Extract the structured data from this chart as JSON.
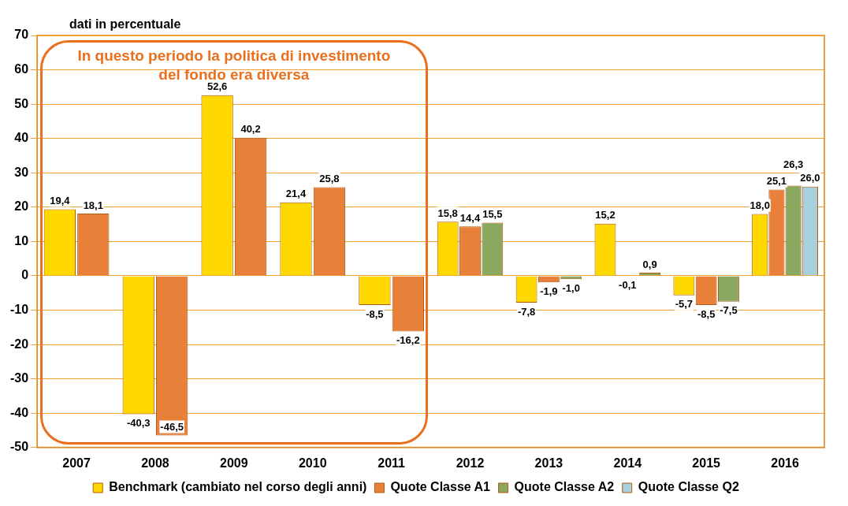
{
  "chart_data": {
    "type": "bar",
    "ylabel": "dati in percentuale",
    "categories": [
      "2007",
      "2008",
      "2009",
      "2010",
      "2011",
      "2012",
      "2013",
      "2014",
      "2015",
      "2016"
    ],
    "series": [
      {
        "name": "Benchmark (cambiato nel corso degli anni)",
        "color": "#ffd800",
        "values": [
          19.4,
          -40.3,
          52.6,
          21.4,
          -8.5,
          15.8,
          -7.8,
          15.2,
          -5.7,
          18.0
        ],
        "value_labels": [
          "19,4",
          "-40,3",
          "52,6",
          "21,4",
          "-8,5",
          "15,8",
          "-7,8",
          "15,2",
          "-5,7",
          "18,0"
        ]
      },
      {
        "name": "Quote Classe A1",
        "color": "#e8803a",
        "values": [
          18.1,
          -46.5,
          40.2,
          25.8,
          -16.2,
          14.4,
          -1.9,
          -0.1,
          -8.5,
          25.1
        ],
        "value_labels": [
          "18,1",
          "-46,5",
          "40,2",
          "25,8",
          "-16,2",
          "14,4",
          "-1,9",
          "-0,1",
          "-8,5",
          "25,1"
        ]
      },
      {
        "name": "Quote Classe A2",
        "color": "#8aa860",
        "values": [
          null,
          null,
          null,
          null,
          null,
          15.5,
          -1.0,
          0.9,
          -7.5,
          26.3
        ],
        "value_labels": [
          null,
          null,
          null,
          null,
          null,
          "15,5",
          "-1,0",
          "0,9",
          "-7,5",
          "26,3"
        ]
      },
      {
        "name": "Quote Classe Q2",
        "color": "#a8d0dc",
        "values": [
          null,
          null,
          null,
          null,
          null,
          null,
          null,
          null,
          null,
          26.0
        ],
        "value_labels": [
          null,
          null,
          null,
          null,
          null,
          null,
          null,
          null,
          null,
          "26,0"
        ]
      }
    ],
    "ylim": [
      -50,
      70
    ],
    "yticks": [
      -50,
      -40,
      -30,
      -20,
      -10,
      0,
      10,
      20,
      30,
      40,
      50,
      60,
      70
    ],
    "grid": "y",
    "legend": "bottom",
    "annotations": [
      "In questo periodo la politica di investimento del fondo era diversa"
    ]
  }
}
